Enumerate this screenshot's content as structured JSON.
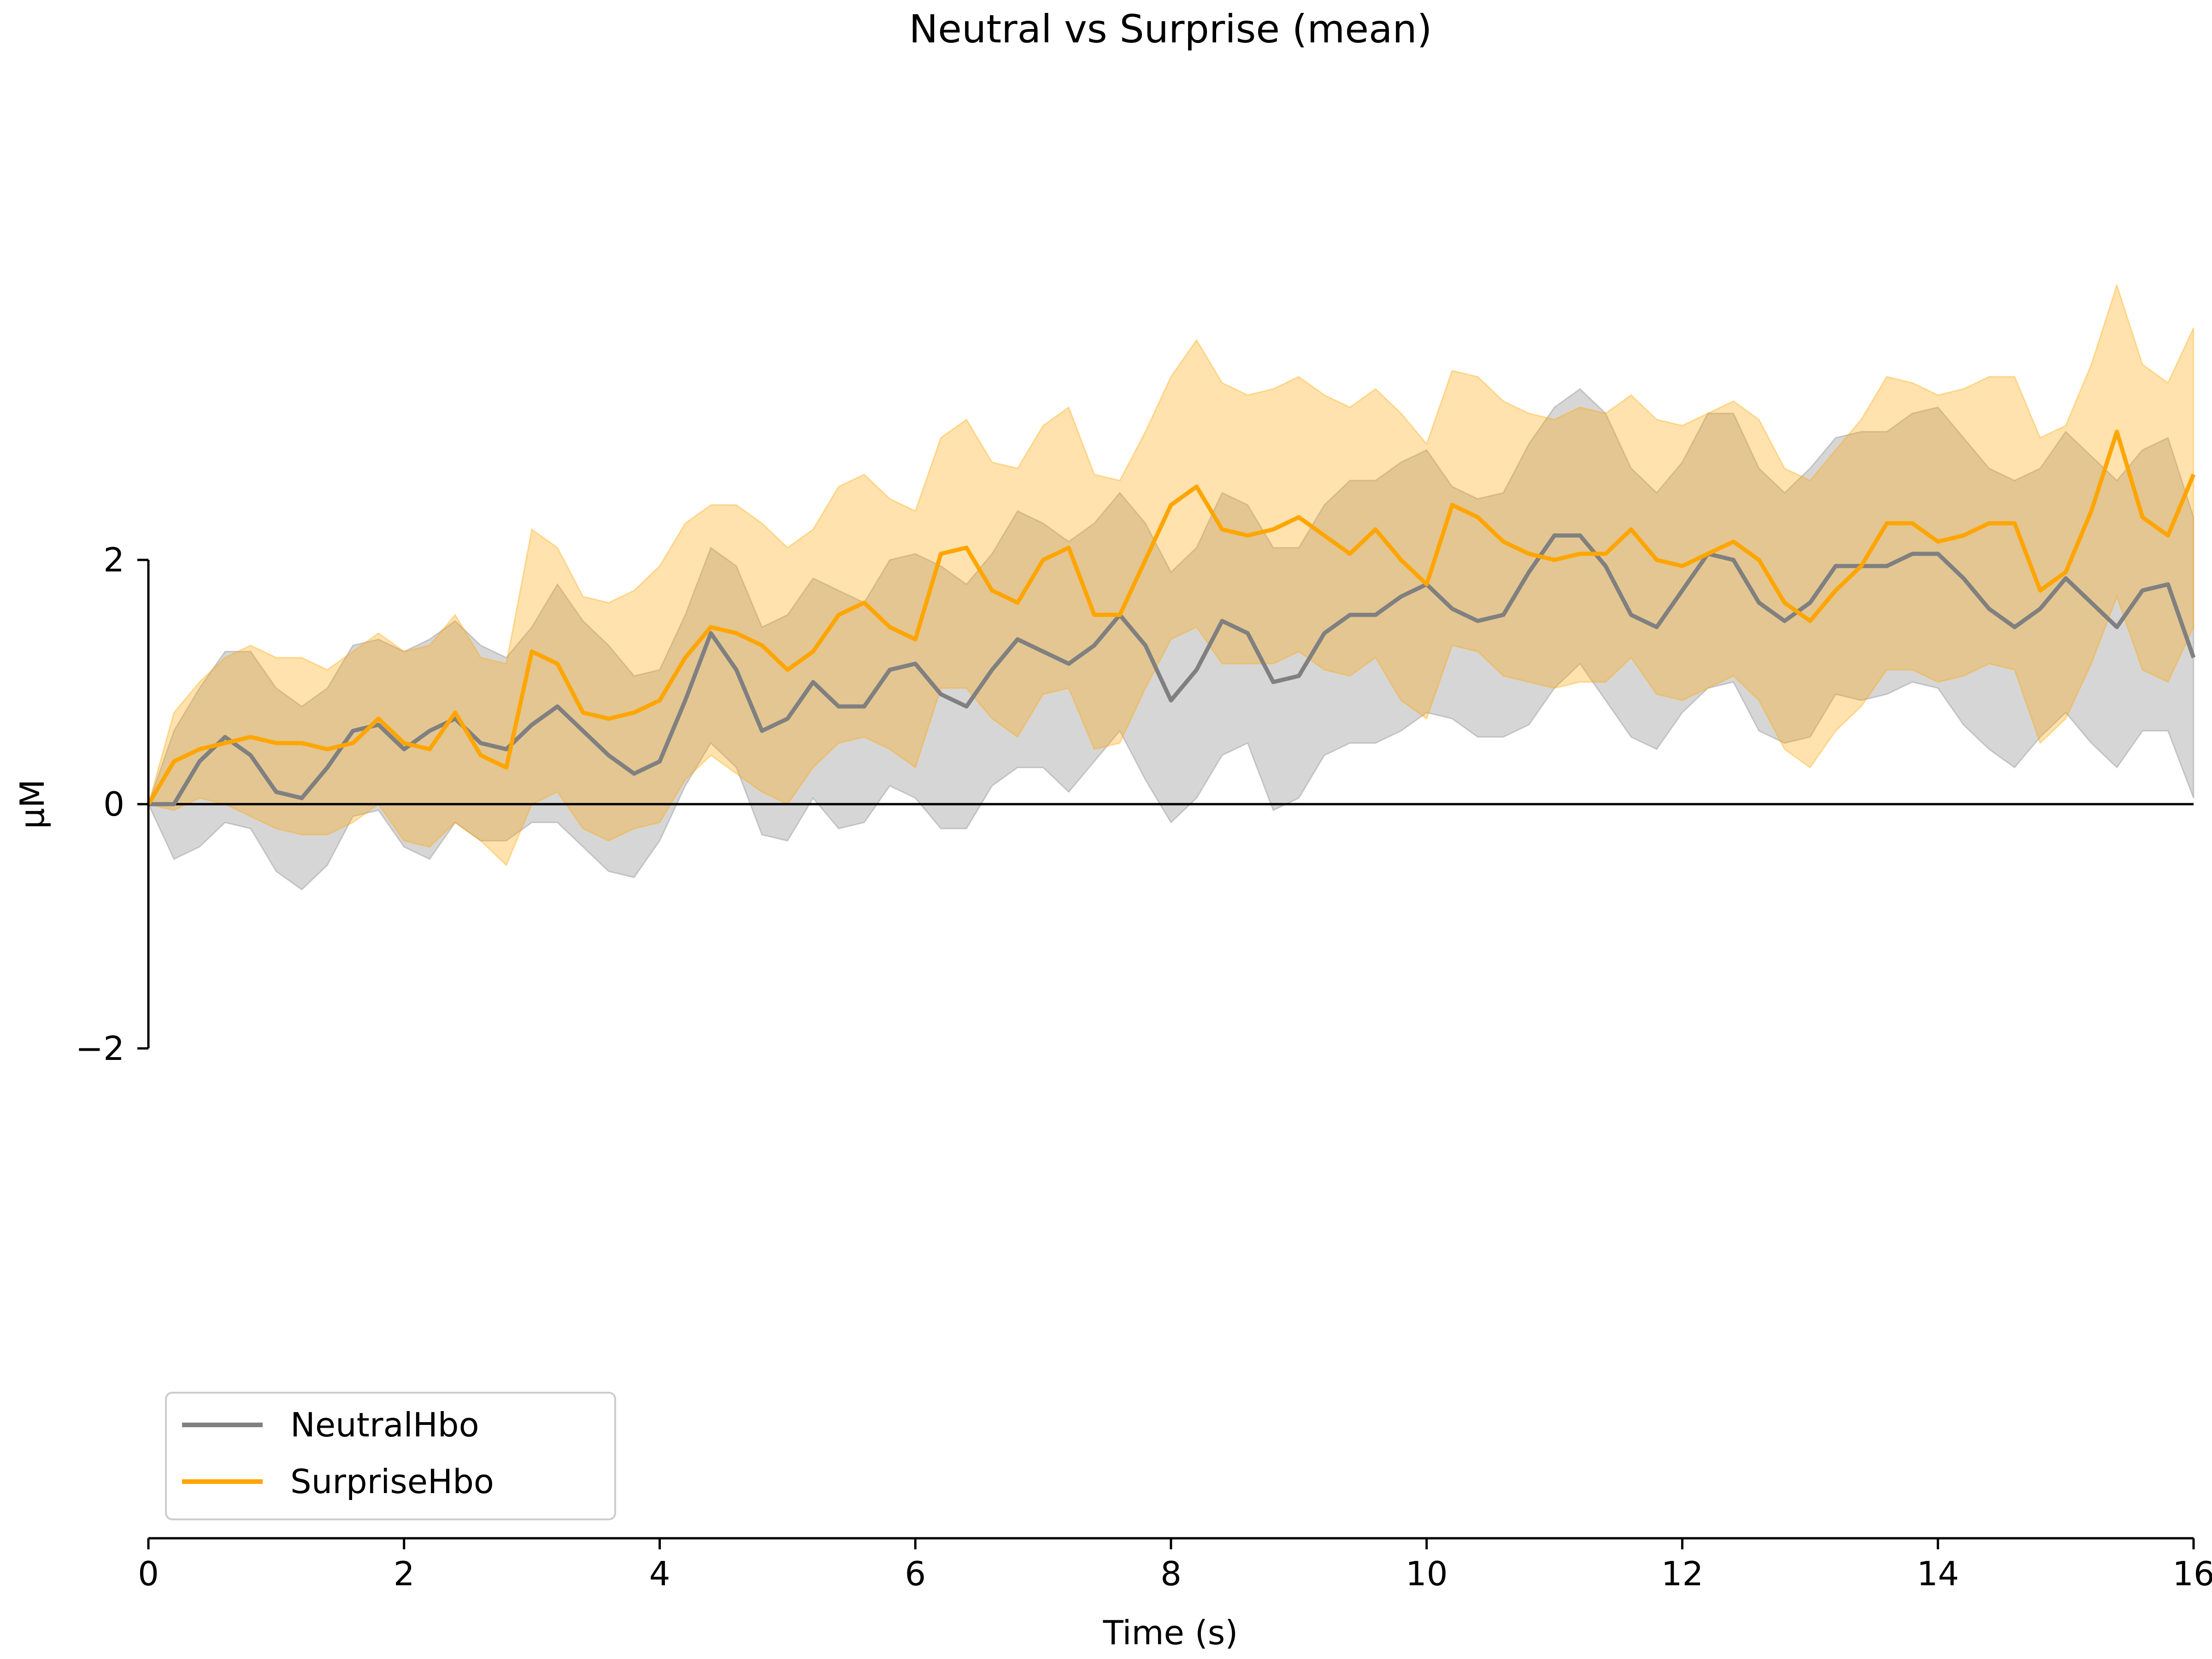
{
  "chart_data": {
    "type": "line",
    "title": "Neutral vs Surprise (mean)",
    "xlabel": "Time (s)",
    "ylabel": "μM",
    "xlim": [
      0,
      16
    ],
    "ylim": [
      -2,
      2
    ],
    "xticks": [
      "0",
      "2",
      "4",
      "6",
      "8",
      "10",
      "12",
      "14",
      "16"
    ],
    "yticks": [
      "−2",
      "0",
      "2"
    ],
    "legend_position": "lower-left",
    "grid": false,
    "zero_line": true,
    "x": [
      0,
      0.2,
      0.4,
      0.6,
      0.8,
      1.0,
      1.2,
      1.4,
      1.6,
      1.8,
      2.0,
      2.2,
      2.4,
      2.6,
      2.8,
      3.0,
      3.2,
      3.4,
      3.6,
      3.8,
      4.0,
      4.2,
      4.4,
      4.6,
      4.8,
      5.0,
      5.2,
      5.4,
      5.6,
      5.8,
      6.0,
      6.2,
      6.4,
      6.6,
      6.8,
      7.0,
      7.2,
      7.4,
      7.6,
      7.8,
      8.0,
      8.2,
      8.4,
      8.6,
      8.8,
      9.0,
      9.2,
      9.4,
      9.6,
      9.8,
      10.0,
      10.2,
      10.4,
      10.6,
      10.8,
      11.0,
      11.2,
      11.4,
      11.6,
      11.8,
      12.0,
      12.2,
      12.4,
      12.6,
      12.8,
      13.0,
      13.2,
      13.4,
      13.6,
      13.8,
      14.0,
      14.2,
      14.4,
      14.6,
      14.8,
      15.0,
      15.2,
      15.4,
      15.6,
      15.8,
      16.0
    ],
    "series": [
      {
        "name": "NeutralHbo",
        "color": "#808080",
        "values": [
          0,
          0.0,
          0.35,
          0.55,
          0.4,
          0.1,
          0.05,
          0.3,
          0.6,
          0.65,
          0.45,
          0.6,
          0.7,
          0.5,
          0.45,
          0.65,
          0.8,
          0.6,
          0.4,
          0.25,
          0.35,
          0.85,
          1.4,
          1.1,
          0.6,
          0.7,
          1.0,
          0.8,
          0.8,
          1.1,
          1.15,
          0.9,
          0.8,
          1.1,
          1.35,
          1.25,
          1.15,
          1.3,
          1.55,
          1.3,
          0.85,
          1.1,
          1.5,
          1.4,
          1.0,
          1.05,
          1.4,
          1.55,
          1.55,
          1.7,
          1.8,
          1.6,
          1.5,
          1.55,
          1.9,
          2.2,
          2.2,
          1.95,
          1.55,
          1.45,
          1.75,
          2.05,
          2.0,
          1.65,
          1.5,
          1.65,
          1.95,
          1.95,
          1.95,
          2.05,
          2.05,
          1.85,
          1.6,
          1.45,
          1.6,
          1.85,
          1.65,
          1.45,
          1.75,
          1.8,
          1.2
        ],
        "lower": [
          0,
          -0.45,
          -0.35,
          -0.15,
          -0.2,
          -0.55,
          -0.7,
          -0.5,
          -0.1,
          -0.05,
          -0.35,
          -0.45,
          -0.15,
          -0.3,
          -0.3,
          -0.15,
          -0.15,
          -0.35,
          -0.55,
          -0.6,
          -0.3,
          0.15,
          0.5,
          0.3,
          -0.25,
          -0.3,
          0.05,
          -0.2,
          -0.15,
          0.15,
          0.05,
          -0.2,
          -0.2,
          0.15,
          0.3,
          0.3,
          0.1,
          0.35,
          0.6,
          0.2,
          -0.15,
          0.05,
          0.4,
          0.5,
          -0.05,
          0.05,
          0.4,
          0.5,
          0.5,
          0.6,
          0.75,
          0.7,
          0.55,
          0.55,
          0.65,
          0.95,
          1.15,
          0.85,
          0.55,
          0.45,
          0.75,
          0.95,
          1.0,
          0.6,
          0.5,
          0.55,
          0.9,
          0.85,
          0.9,
          1.0,
          0.95,
          0.65,
          0.45,
          0.3,
          0.55,
          0.75,
          0.5,
          0.3,
          0.6,
          0.6,
          0.05
        ],
        "upper": [
          0,
          0.6,
          0.95,
          1.25,
          1.25,
          0.95,
          0.8,
          0.95,
          1.3,
          1.35,
          1.25,
          1.35,
          1.5,
          1.3,
          1.2,
          1.45,
          1.8,
          1.5,
          1.3,
          1.05,
          1.1,
          1.55,
          2.1,
          1.95,
          1.45,
          1.55,
          1.85,
          1.75,
          1.65,
          2.0,
          2.05,
          1.95,
          1.8,
          2.05,
          2.4,
          2.3,
          2.15,
          2.3,
          2.55,
          2.3,
          1.9,
          2.1,
          2.55,
          2.45,
          2.1,
          2.1,
          2.45,
          2.65,
          2.65,
          2.8,
          2.9,
          2.6,
          2.5,
          2.55,
          2.95,
          3.25,
          3.4,
          3.2,
          2.75,
          2.55,
          2.8,
          3.2,
          3.2,
          2.75,
          2.55,
          2.75,
          3.0,
          3.05,
          3.05,
          3.2,
          3.25,
          3.0,
          2.75,
          2.65,
          2.75,
          3.05,
          2.85,
          2.65,
          2.9,
          3.0,
          2.35
        ]
      },
      {
        "name": "SurpriseHbo",
        "color": "#FFA500",
        "values": [
          0,
          0.35,
          0.45,
          0.5,
          0.55,
          0.5,
          0.5,
          0.45,
          0.5,
          0.7,
          0.5,
          0.45,
          0.75,
          0.4,
          0.3,
          1.25,
          1.15,
          0.75,
          0.7,
          0.75,
          0.85,
          1.2,
          1.45,
          1.4,
          1.3,
          1.1,
          1.25,
          1.55,
          1.65,
          1.45,
          1.35,
          2.05,
          2.1,
          1.75,
          1.65,
          2.0,
          2.1,
          1.55,
          1.55,
          2.0,
          2.45,
          2.6,
          2.25,
          2.2,
          2.25,
          2.35,
          2.2,
          2.05,
          2.25,
          2.0,
          1.8,
          2.45,
          2.35,
          2.15,
          2.05,
          2.0,
          2.05,
          2.05,
          2.25,
          2.0,
          1.95,
          2.05,
          2.15,
          2.0,
          1.65,
          1.5,
          1.75,
          1.95,
          2.3,
          2.3,
          2.15,
          2.2,
          2.3,
          2.3,
          1.75,
          1.9,
          2.4,
          3.05,
          2.35,
          2.2,
          2.7
        ],
        "lower": [
          0,
          -0.05,
          0.05,
          0.0,
          -0.1,
          -0.2,
          -0.25,
          -0.25,
          -0.15,
          0.0,
          -0.3,
          -0.35,
          -0.15,
          -0.3,
          -0.5,
          0.0,
          0.1,
          -0.2,
          -0.3,
          -0.2,
          -0.15,
          0.2,
          0.4,
          0.25,
          0.1,
          0.0,
          0.3,
          0.5,
          0.55,
          0.45,
          0.3,
          0.95,
          0.95,
          0.7,
          0.55,
          0.9,
          0.95,
          0.45,
          0.5,
          0.95,
          1.35,
          1.45,
          1.15,
          1.15,
          1.15,
          1.25,
          1.1,
          1.05,
          1.2,
          0.85,
          0.7,
          1.3,
          1.25,
          1.05,
          1.0,
          0.95,
          1.0,
          1.0,
          1.2,
          0.9,
          0.85,
          0.95,
          1.05,
          0.85,
          0.45,
          0.3,
          0.6,
          0.8,
          1.1,
          1.1,
          1.0,
          1.05,
          1.15,
          1.1,
          0.5,
          0.7,
          1.15,
          1.7,
          1.1,
          1.0,
          1.45
        ],
        "upper": [
          0,
          0.75,
          1.0,
          1.2,
          1.3,
          1.2,
          1.2,
          1.1,
          1.25,
          1.4,
          1.25,
          1.3,
          1.55,
          1.2,
          1.15,
          2.25,
          2.1,
          1.7,
          1.65,
          1.75,
          1.95,
          2.3,
          2.45,
          2.45,
          2.3,
          2.1,
          2.25,
          2.6,
          2.7,
          2.5,
          2.4,
          3.0,
          3.15,
          2.8,
          2.75,
          3.1,
          3.25,
          2.7,
          2.65,
          3.05,
          3.5,
          3.8,
          3.45,
          3.35,
          3.4,
          3.5,
          3.35,
          3.25,
          3.4,
          3.2,
          2.95,
          3.55,
          3.5,
          3.3,
          3.2,
          3.15,
          3.25,
          3.2,
          3.35,
          3.15,
          3.1,
          3.2,
          3.3,
          3.15,
          2.75,
          2.65,
          2.9,
          3.15,
          3.5,
          3.45,
          3.35,
          3.4,
          3.5,
          3.5,
          3.0,
          3.1,
          3.6,
          4.25,
          3.6,
          3.45,
          3.9
        ]
      }
    ]
  }
}
